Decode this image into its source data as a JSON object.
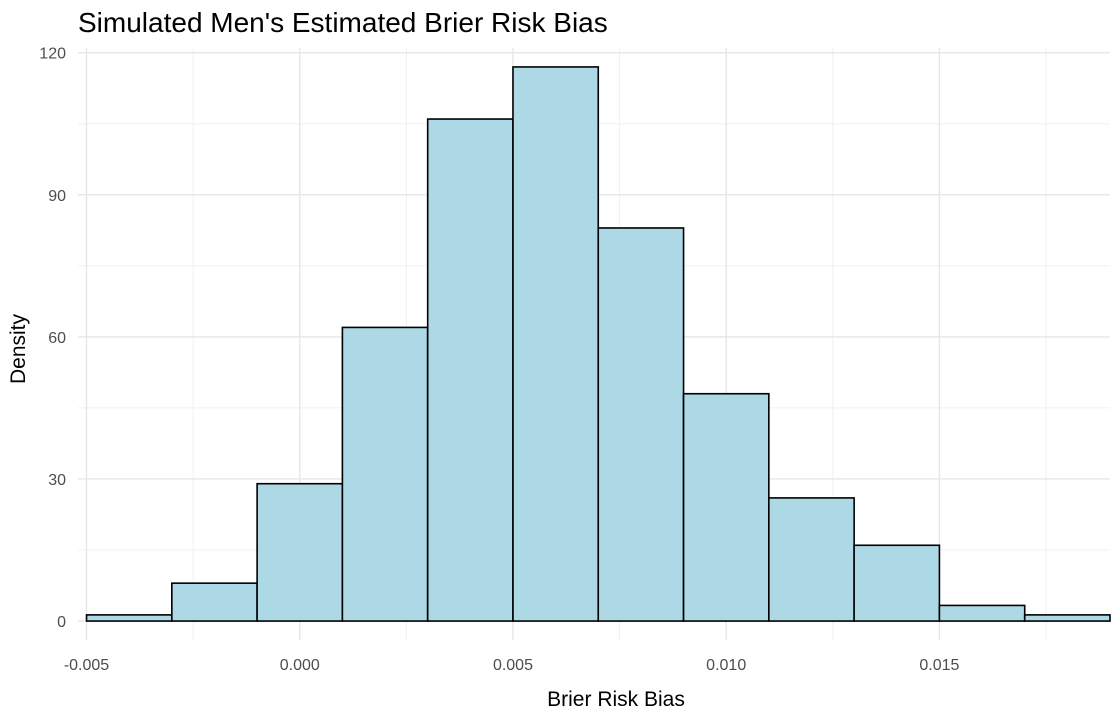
{
  "chart_data": {
    "type": "bar",
    "title": "Simulated Men's Estimated Brier Risk Bias",
    "xlabel": "Brier Risk Bias",
    "ylabel": "Density",
    "bar_color": "#add8e6",
    "bar_outline": "#000000",
    "grid": true,
    "xlim": [
      -0.0052,
      0.019
    ],
    "ylim": [
      -4,
      121
    ],
    "x_ticks": [
      -0.005,
      0.0,
      0.005,
      0.01,
      0.015
    ],
    "x_tick_labels": [
      "-0.005",
      "0.000",
      "0.005",
      "0.010",
      "0.015"
    ],
    "y_ticks": [
      0,
      30,
      60,
      90,
      120
    ],
    "y_tick_labels": [
      "0",
      "30",
      "60",
      "90",
      "120"
    ],
    "bins": [
      {
        "x0": -0.005,
        "x1": -0.003,
        "value": 1.3
      },
      {
        "x0": -0.003,
        "x1": -0.001,
        "value": 8
      },
      {
        "x0": -0.001,
        "x1": 0.001,
        "value": 29
      },
      {
        "x0": 0.001,
        "x1": 0.003,
        "value": 62
      },
      {
        "x0": 0.003,
        "x1": 0.005,
        "value": 106
      },
      {
        "x0": 0.005,
        "x1": 0.007,
        "value": 117
      },
      {
        "x0": 0.007,
        "x1": 0.009,
        "value": 83
      },
      {
        "x0": 0.009,
        "x1": 0.011,
        "value": 48
      },
      {
        "x0": 0.011,
        "x1": 0.013,
        "value": 26
      },
      {
        "x0": 0.013,
        "x1": 0.015,
        "value": 16
      },
      {
        "x0": 0.015,
        "x1": 0.017,
        "value": 3.3
      },
      {
        "x0": 0.017,
        "x1": 0.019,
        "value": 1.3
      }
    ]
  }
}
